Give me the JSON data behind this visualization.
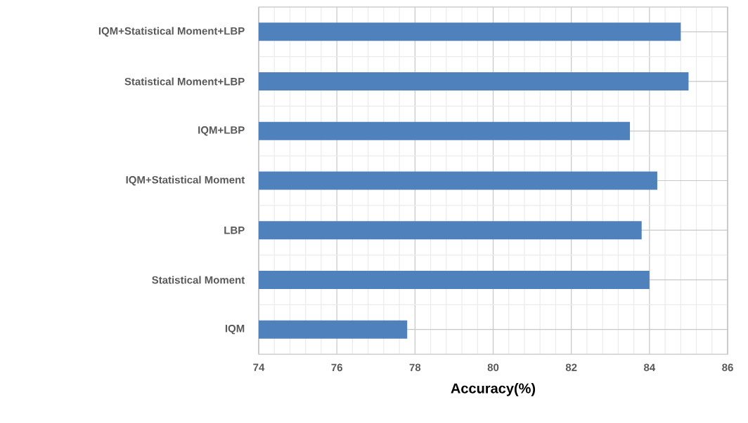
{
  "chart_data": {
    "type": "bar",
    "orientation": "horizontal",
    "xlabel": "Accuracy(%)",
    "categories": [
      "IQM+Statistical Moment+LBP",
      "Statistical Moment+LBP",
      "IQM+LBP",
      "IQM+Statistical Moment",
      "LBP",
      "Statistical Moment",
      "IQM"
    ],
    "values": [
      84.8,
      85.0,
      83.5,
      84.2,
      83.8,
      84.0,
      77.8
    ],
    "color": "#4f81bd",
    "xlim": [
      74,
      86
    ],
    "xticks": [
      74,
      76,
      78,
      80,
      82,
      84,
      86
    ],
    "grid": true
  }
}
